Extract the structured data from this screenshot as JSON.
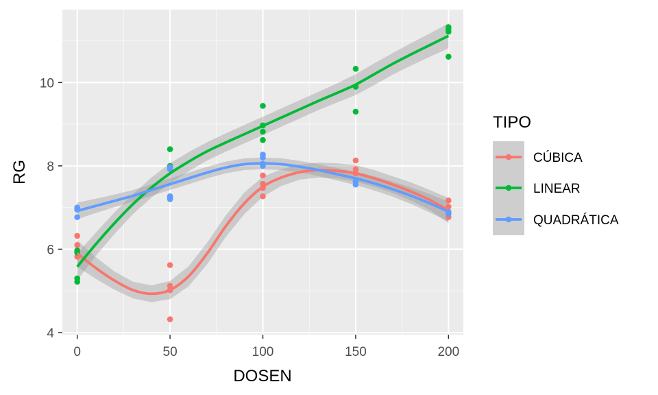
{
  "chart_data": {
    "type": "scatter",
    "xlabel": "DOSEN",
    "ylabel": "RG",
    "xlim": [
      -8,
      208
    ],
    "ylim": [
      3.95,
      11.75
    ],
    "x_ticks": [
      0,
      50,
      100,
      150,
      200
    ],
    "y_ticks": [
      4,
      6,
      8,
      10
    ],
    "grid": true,
    "smoother": "loess with 95% confidence band",
    "legend": {
      "title": "TIPO",
      "position": "right"
    },
    "series": [
      {
        "name": "CÚBICA",
        "color": "#F8766D",
        "points": [
          {
            "x": 0,
            "y": 6.32
          },
          {
            "x": 0,
            "y": 6.1
          },
          {
            "x": 0,
            "y": 5.92
          },
          {
            "x": 0,
            "y": 5.82
          },
          {
            "x": 50,
            "y": 5.62
          },
          {
            "x": 50,
            "y": 5.12
          },
          {
            "x": 50,
            "y": 5.02
          },
          {
            "x": 50,
            "y": 4.32
          },
          {
            "x": 100,
            "y": 7.77
          },
          {
            "x": 100,
            "y": 7.57
          },
          {
            "x": 100,
            "y": 7.47
          },
          {
            "x": 100,
            "y": 7.27
          },
          {
            "x": 150,
            "y": 8.13
          },
          {
            "x": 150,
            "y": 7.92
          },
          {
            "x": 150,
            "y": 7.82
          },
          {
            "x": 150,
            "y": 7.62
          },
          {
            "x": 200,
            "y": 7.17
          },
          {
            "x": 200,
            "y": 7.02
          },
          {
            "x": 200,
            "y": 6.87
          },
          {
            "x": 200,
            "y": 6.77
          }
        ],
        "fit": [
          {
            "x": 0,
            "y": 5.9
          },
          {
            "x": 10,
            "y": 5.55
          },
          {
            "x": 20,
            "y": 5.25
          },
          {
            "x": 30,
            "y": 5.02
          },
          {
            "x": 40,
            "y": 4.93
          },
          {
            "x": 50,
            "y": 5.02
          },
          {
            "x": 60,
            "y": 5.35
          },
          {
            "x": 70,
            "y": 5.9
          },
          {
            "x": 80,
            "y": 6.55
          },
          {
            "x": 90,
            "y": 7.1
          },
          {
            "x": 100,
            "y": 7.5
          },
          {
            "x": 110,
            "y": 7.72
          },
          {
            "x": 120,
            "y": 7.85
          },
          {
            "x": 130,
            "y": 7.9
          },
          {
            "x": 140,
            "y": 7.88
          },
          {
            "x": 150,
            "y": 7.82
          },
          {
            "x": 160,
            "y": 7.7
          },
          {
            "x": 170,
            "y": 7.55
          },
          {
            "x": 180,
            "y": 7.38
          },
          {
            "x": 190,
            "y": 7.18
          },
          {
            "x": 200,
            "y": 6.93
          }
        ],
        "band_halfwidth": [
          0.32,
          0.26,
          0.22,
          0.2,
          0.2,
          0.22,
          0.24,
          0.26,
          0.26,
          0.26,
          0.24,
          0.2,
          0.18,
          0.18,
          0.18,
          0.2,
          0.2,
          0.2,
          0.22,
          0.24,
          0.3
        ]
      },
      {
        "name": "LINEAR",
        "color": "#00BA38",
        "points": [
          {
            "x": 0,
            "y": 5.97
          },
          {
            "x": 0,
            "y": 5.92
          },
          {
            "x": 0,
            "y": 5.3
          },
          {
            "x": 0,
            "y": 5.22
          },
          {
            "x": 50,
            "y": 8.4
          },
          {
            "x": 50,
            "y": 8.0
          },
          {
            "x": 50,
            "y": 7.27
          },
          {
            "x": 50,
            "y": 7.22
          },
          {
            "x": 100,
            "y": 9.44
          },
          {
            "x": 100,
            "y": 8.97
          },
          {
            "x": 100,
            "y": 8.82
          },
          {
            "x": 100,
            "y": 8.62
          },
          {
            "x": 150,
            "y": 10.33
          },
          {
            "x": 150,
            "y": 9.9
          },
          {
            "x": 150,
            "y": 9.3
          },
          {
            "x": 200,
            "y": 11.33
          },
          {
            "x": 200,
            "y": 11.28
          },
          {
            "x": 200,
            "y": 11.22
          },
          {
            "x": 200,
            "y": 10.62
          }
        ],
        "fit": [
          {
            "x": 0,
            "y": 5.58
          },
          {
            "x": 10,
            "y": 6.12
          },
          {
            "x": 20,
            "y": 6.62
          },
          {
            "x": 30,
            "y": 7.08
          },
          {
            "x": 40,
            "y": 7.48
          },
          {
            "x": 50,
            "y": 7.82
          },
          {
            "x": 60,
            "y": 8.1
          },
          {
            "x": 70,
            "y": 8.35
          },
          {
            "x": 80,
            "y": 8.56
          },
          {
            "x": 90,
            "y": 8.76
          },
          {
            "x": 100,
            "y": 8.96
          },
          {
            "x": 110,
            "y": 9.16
          },
          {
            "x": 120,
            "y": 9.36
          },
          {
            "x": 130,
            "y": 9.56
          },
          {
            "x": 140,
            "y": 9.75
          },
          {
            "x": 150,
            "y": 9.95
          },
          {
            "x": 160,
            "y": 10.2
          },
          {
            "x": 170,
            "y": 10.45
          },
          {
            "x": 180,
            "y": 10.68
          },
          {
            "x": 190,
            "y": 10.9
          },
          {
            "x": 200,
            "y": 11.12
          }
        ],
        "band_halfwidth": [
          0.32,
          0.28,
          0.26,
          0.24,
          0.24,
          0.24,
          0.23,
          0.22,
          0.22,
          0.22,
          0.22,
          0.22,
          0.22,
          0.22,
          0.23,
          0.25,
          0.26,
          0.26,
          0.27,
          0.28,
          0.3
        ]
      },
      {
        "name": "QUADRÁTICA",
        "color": "#619CFF",
        "points": [
          {
            "x": 0,
            "y": 7.0
          },
          {
            "x": 0,
            "y": 6.95
          },
          {
            "x": 0,
            "y": 6.77
          },
          {
            "x": 50,
            "y": 7.97
          },
          {
            "x": 50,
            "y": 7.92
          },
          {
            "x": 50,
            "y": 7.27
          },
          {
            "x": 50,
            "y": 7.2
          },
          {
            "x": 100,
            "y": 8.27
          },
          {
            "x": 100,
            "y": 8.2
          },
          {
            "x": 100,
            "y": 8.05
          },
          {
            "x": 100,
            "y": 8.0
          },
          {
            "x": 150,
            "y": 7.55
          },
          {
            "x": 150,
            "y": 7.62
          },
          {
            "x": 200,
            "y": 6.9
          },
          {
            "x": 200,
            "y": 6.85
          }
        ],
        "fit": [
          {
            "x": 0,
            "y": 6.92
          },
          {
            "x": 10,
            "y": 7.04
          },
          {
            "x": 20,
            "y": 7.16
          },
          {
            "x": 30,
            "y": 7.28
          },
          {
            "x": 40,
            "y": 7.42
          },
          {
            "x": 50,
            "y": 7.56
          },
          {
            "x": 60,
            "y": 7.7
          },
          {
            "x": 70,
            "y": 7.84
          },
          {
            "x": 80,
            "y": 7.96
          },
          {
            "x": 90,
            "y": 8.04
          },
          {
            "x": 100,
            "y": 8.06
          },
          {
            "x": 110,
            "y": 8.04
          },
          {
            "x": 120,
            "y": 7.98
          },
          {
            "x": 130,
            "y": 7.9
          },
          {
            "x": 140,
            "y": 7.8
          },
          {
            "x": 150,
            "y": 7.7
          },
          {
            "x": 160,
            "y": 7.58
          },
          {
            "x": 170,
            "y": 7.44
          },
          {
            "x": 180,
            "y": 7.28
          },
          {
            "x": 190,
            "y": 7.1
          },
          {
            "x": 200,
            "y": 6.9
          }
        ],
        "band_halfwidth": [
          0.2,
          0.17,
          0.15,
          0.14,
          0.14,
          0.14,
          0.14,
          0.14,
          0.14,
          0.14,
          0.14,
          0.14,
          0.14,
          0.14,
          0.15,
          0.16,
          0.17,
          0.18,
          0.2,
          0.22,
          0.24
        ]
      }
    ]
  }
}
